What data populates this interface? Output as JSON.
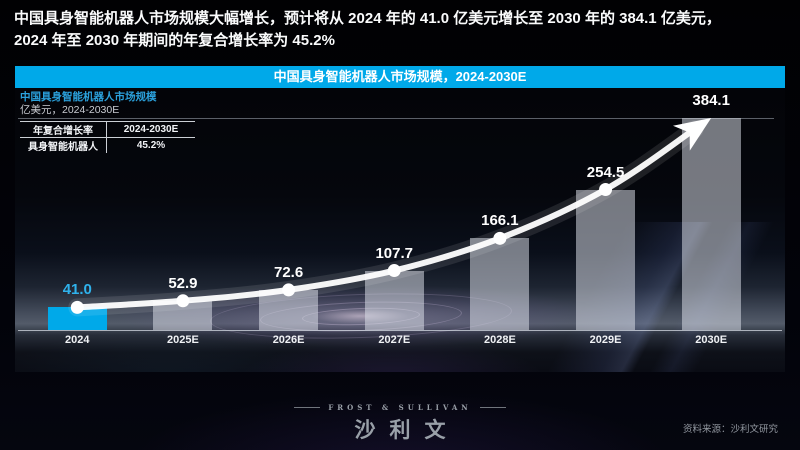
{
  "headline": {
    "text": "中国具身智能机器人市场规模大幅增长，预计将从 2024 年的 41.0 亿美元增长至 2030 年的 384.1 亿美元，2024 年至 2030 年期间的年复合增长率为 45.2%"
  },
  "banner": {
    "title": "中国具身智能机器人市场规模，2024-2030E"
  },
  "chart": {
    "name": "中国具身智能机器人市场规模",
    "unit": "亿美元，2024-2030E"
  },
  "cagr_table": {
    "header": [
      "年复合增长率",
      "2024-2030E"
    ],
    "rows": [
      [
        "具身智能机器人",
        "45.2%"
      ]
    ]
  },
  "chart_data": {
    "type": "bar",
    "title": "中国具身智能机器人市场规模，2024-2030E",
    "categories": [
      "2024",
      "2025E",
      "2026E",
      "2027E",
      "2028E",
      "2029E",
      "2030E"
    ],
    "values": [
      41.0,
      52.9,
      72.6,
      107.7,
      166.1,
      254.5,
      384.1
    ],
    "ylabel": "亿美元",
    "ylim": [
      0,
      384.1
    ],
    "grid": false,
    "legend": "none",
    "highlight_index": 0,
    "trend_line_with_arrow": true,
    "annotations": {
      "cagr_label": "年复合增长率",
      "cagr_period": "2024-2030E",
      "cagr_value": "45.2%"
    }
  },
  "colors": {
    "accent_blue": "#00a9e9",
    "accent_light": "#2fb2ec",
    "bar_gray": "rgba(222,227,235,0.52)",
    "value_label_white": "#ffffff"
  },
  "footer": {
    "logo_top": "FROST & SULLIVAN",
    "logo_main": "沙利文",
    "source": "资料来源：沙利文研究"
  }
}
